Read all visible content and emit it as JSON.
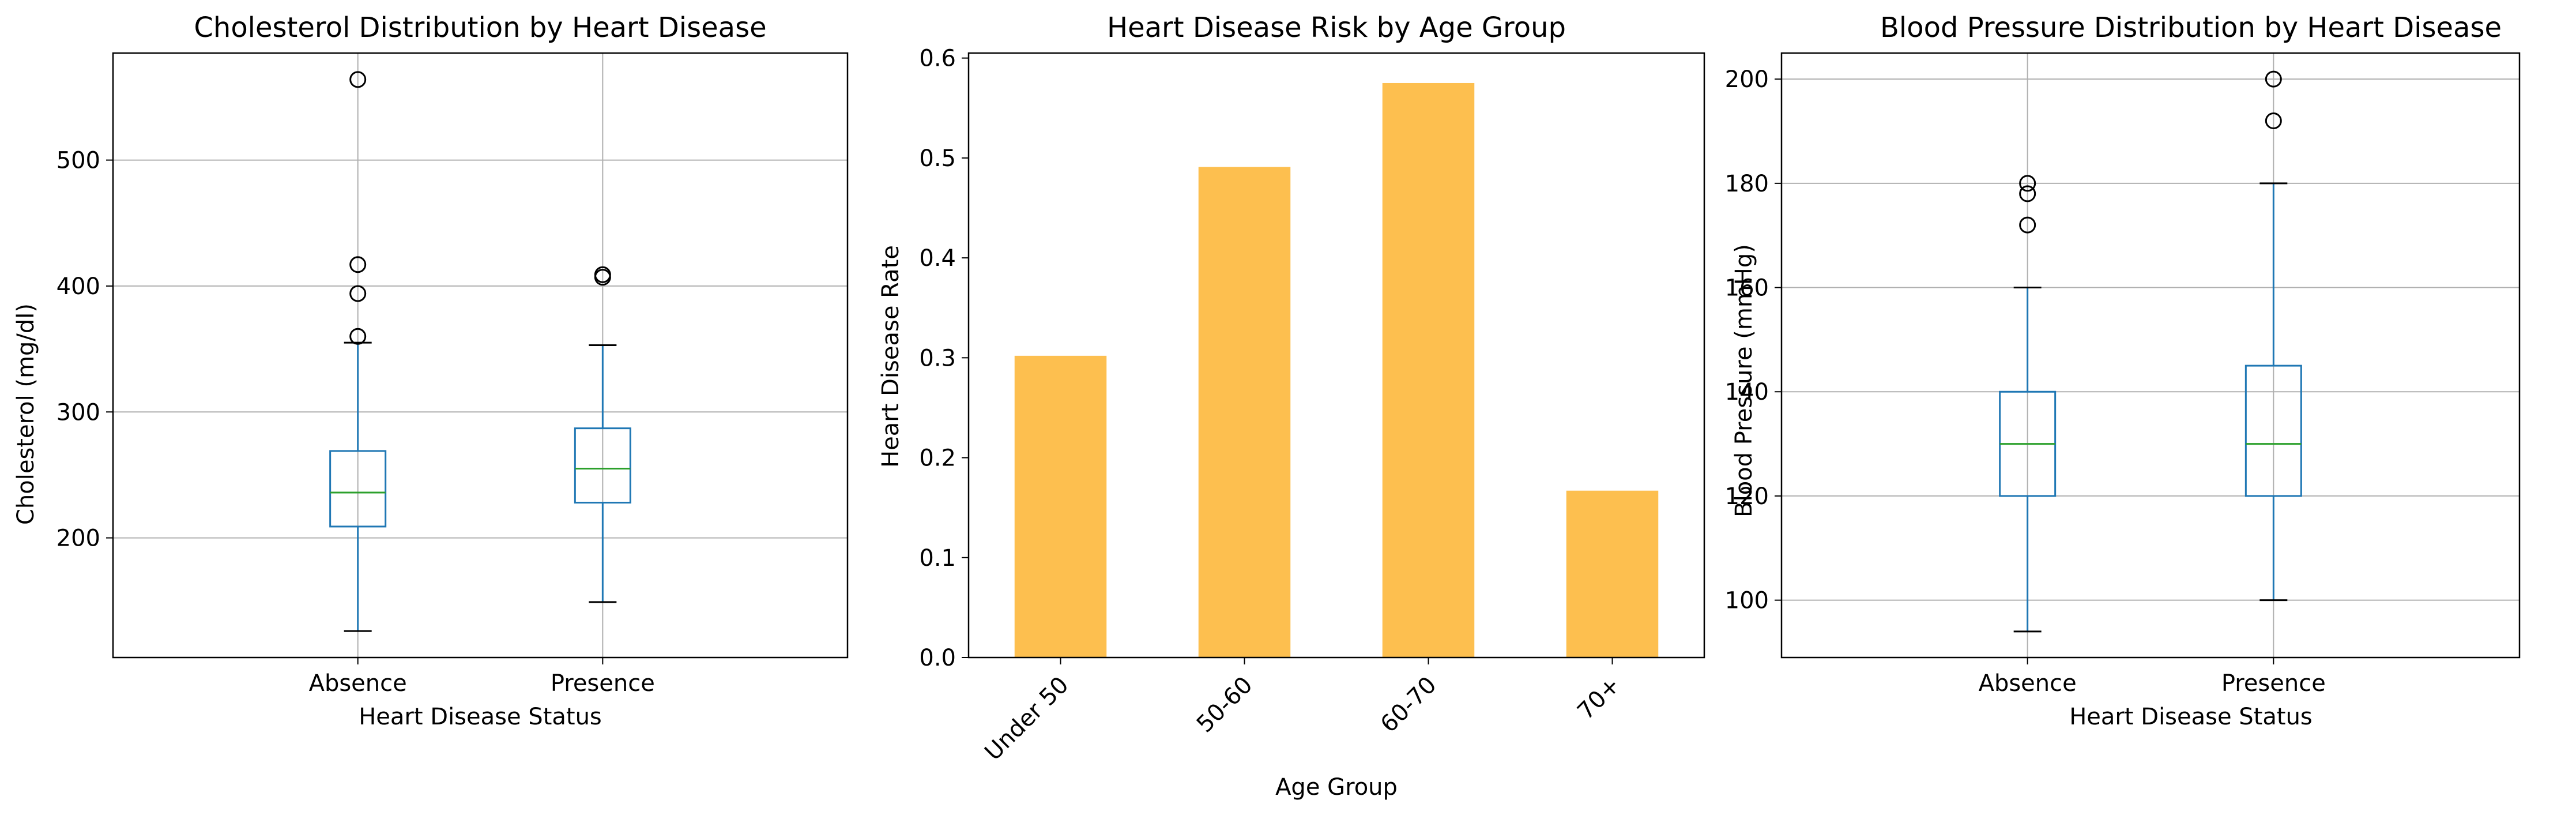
{
  "chart_data": [
    {
      "type": "boxplot",
      "title": "Cholesterol Distribution by Heart Disease",
      "xlabel": "Heart Disease Status",
      "ylabel": "Cholesterol (mg/dl)",
      "ylim": [
        105,
        585
      ],
      "yticks": [
        200,
        300,
        400,
        500
      ],
      "grid": true,
      "categories": [
        "Absence",
        "Presence"
      ],
      "boxes": [
        {
          "name": "Absence",
          "whisker_low": 126,
          "q1": 209,
          "median": 236,
          "q3": 269,
          "whisker_high": 355,
          "outliers": [
            360,
            394,
            417,
            564
          ]
        },
        {
          "name": "Presence",
          "whisker_low": 149,
          "q1": 228,
          "median": 255,
          "q3": 287,
          "whisker_high": 353,
          "outliers": [
            407,
            409
          ]
        }
      ],
      "colors": {
        "box": "#1f77b4",
        "median": "#2ca02c"
      }
    },
    {
      "type": "bar",
      "title": "Heart Disease Risk by Age Group",
      "xlabel": "Age Group",
      "ylabel": "Heart Disease Rate",
      "ylim": [
        0,
        0.605
      ],
      "yticks": [
        "0.0",
        "0.1",
        "0.2",
        "0.3",
        "0.4",
        "0.5",
        "0.6"
      ],
      "grid": false,
      "categories": [
        "Under 50",
        "50-60",
        "60-70",
        "70+"
      ],
      "values": [
        0.302,
        0.491,
        0.575,
        0.167
      ],
      "colors": {
        "bar": "#fdbf4f"
      }
    },
    {
      "type": "boxplot",
      "title": "Blood Pressure Distribution by Heart Disease",
      "xlabel": "Heart Disease Status",
      "ylabel": "Blood Pressure (mmHg)",
      "ylim": [
        89,
        205
      ],
      "yticks": [
        100,
        120,
        140,
        160,
        180,
        200
      ],
      "grid": true,
      "categories": [
        "Absence",
        "Presence"
      ],
      "boxes": [
        {
          "name": "Absence",
          "whisker_low": 94,
          "q1": 120,
          "median": 130,
          "q3": 140,
          "whisker_high": 160,
          "outliers": [
            172,
            178,
            180
          ]
        },
        {
          "name": "Presence",
          "whisker_low": 100,
          "q1": 120,
          "median": 130,
          "q3": 145,
          "whisker_high": 180,
          "outliers": [
            192,
            200
          ]
        }
      ],
      "colors": {
        "box": "#1f77b4",
        "median": "#2ca02c"
      }
    }
  ]
}
